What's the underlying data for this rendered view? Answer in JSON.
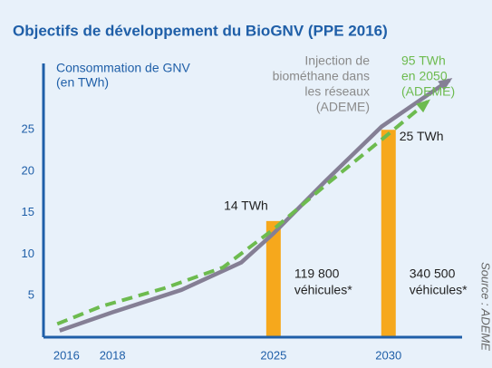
{
  "chart_data": {
    "type": "line",
    "title": "Objectifs de développement du BioGNV (PPE 2016)",
    "y_label": [
      "Consommation de GNV",
      "(en TWh)"
    ],
    "xlim": [
      2015,
      2033.2
    ],
    "ylim": [
      0,
      33
    ],
    "xticks": [
      2016,
      2018,
      2025,
      2030
    ],
    "yticks": [
      5,
      10,
      15,
      20,
      25
    ],
    "series": [
      {
        "color": "#857f95",
        "dashed": false,
        "x": [
          2015.7,
          2018,
          2021,
          2023.6,
          2025,
          2027.25,
          2029.7,
          2032.65
        ],
        "values": [
          0.8,
          3,
          5.7,
          9,
          12.5,
          18.8,
          25.4,
          31
        ]
      },
      {
        "color": "#6dbb4f",
        "dashed": true,
        "x": [
          2015.6,
          2017.5,
          2020.25,
          2022.8,
          2025,
          2027.25,
          2030,
          2031.7
        ],
        "values": [
          1.6,
          3.7,
          5.9,
          8.4,
          13,
          18.3,
          24.5,
          28.4
        ]
      }
    ],
    "bars": {
      "color": "#f6a81c",
      "x": [
        2025,
        2030
      ],
      "values": [
        14,
        25
      ],
      "value_labels": [
        "14 TWh",
        "25 TWh"
      ],
      "notes": [
        [
          "119 800",
          "véhicules*"
        ],
        [
          "340 500",
          "véhicules*"
        ]
      ]
    },
    "annotations": [
      {
        "color": "#8a8a8a",
        "lines": [
          "Injection de",
          "biométhane dans",
          "les réseaux",
          "(ADEME)"
        ]
      },
      {
        "color": "#6dbb4f",
        "lines": [
          "95 TWh",
          "en 2050",
          "(ADEME)"
        ]
      }
    ],
    "source": "Source : ADEME"
  }
}
